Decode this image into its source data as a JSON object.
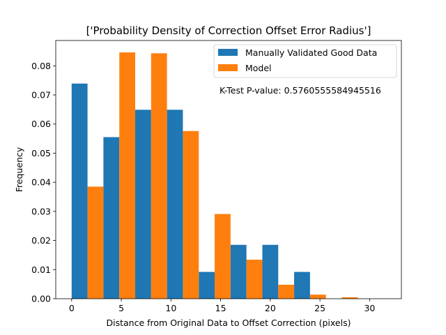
{
  "chart_data": {
    "type": "bar",
    "title": "['Probability Density of Correction Offset Error Radius']",
    "xlabel": "Distance from Original Data to Offset Correction (pixels)",
    "ylabel": "Frequency",
    "xlim": [
      -1.6,
      33.2
    ],
    "ylim": [
      0,
      0.0887
    ],
    "xticks": [
      0,
      5,
      10,
      15,
      20,
      25,
      30
    ],
    "yticks": [
      0.0,
      0.01,
      0.02,
      0.03,
      0.04,
      0.05,
      0.06,
      0.07,
      0.08
    ],
    "ytick_labels": [
      "0.00",
      "0.01",
      "0.02",
      "0.03",
      "0.04",
      "0.05",
      "0.06",
      "0.07",
      "0.08"
    ],
    "bin_edges": [
      0,
      3.2,
      6.4,
      9.6,
      12.8,
      16,
      19.2,
      22.4,
      25.6,
      28.8,
      32
    ],
    "series": [
      {
        "name": "Manually Validated Good Data",
        "color": "#1f77b4",
        "values": [
          0.0739,
          0.0555,
          0.0649,
          0.0649,
          0.0092,
          0.0185,
          0.0185,
          0.0092,
          0.0,
          0.0
        ]
      },
      {
        "name": "Model",
        "color": "#ff7f0e",
        "values": [
          0.0385,
          0.0846,
          0.0843,
          0.0576,
          0.0291,
          0.0134,
          0.0048,
          0.0014,
          0.0005,
          0.0
        ]
      }
    ],
    "legend_position": "top-right",
    "annotation": "K-Test P-value: 0.5760555584945516",
    "grid": false
  }
}
